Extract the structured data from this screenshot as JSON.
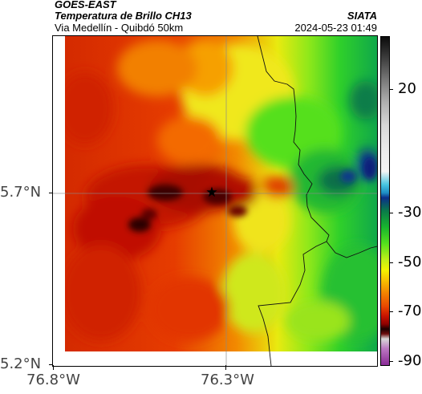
{
  "header": {
    "satellite": "GOES-EAST",
    "product": "Temperatura de Brillo CH13",
    "organization": "SIATA",
    "subtitle": "Via Medellín - Quibdó 50km",
    "datetime": "2024-05-23 01:49"
  },
  "map": {
    "y_axis_labels": [
      "5.7°N",
      "5.2°N"
    ],
    "x_axis_labels": [
      "76.8°W",
      "76.3°W"
    ],
    "marker": "star-icon"
  },
  "colorbar": {
    "labels": [
      "20",
      "-30",
      "-50",
      "-70",
      "-90"
    ]
  }
}
